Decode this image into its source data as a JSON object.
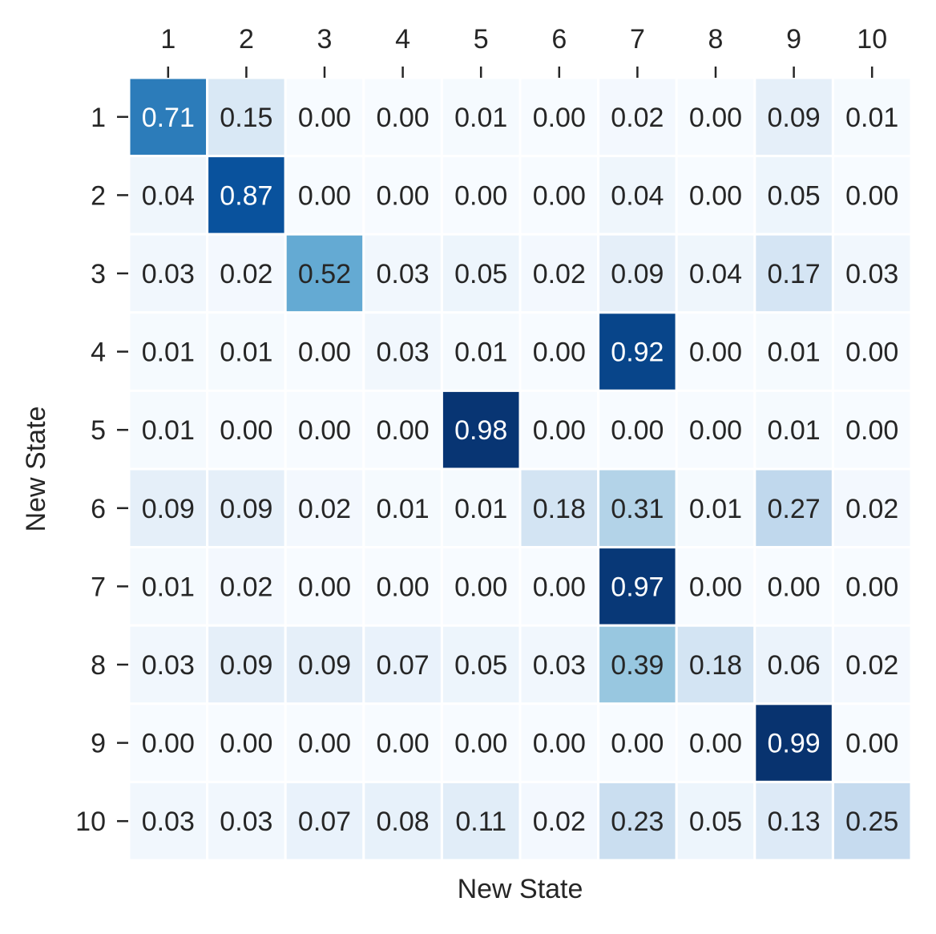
{
  "chart_data": {
    "type": "heatmap",
    "title": "",
    "xlabel": "New State",
    "ylabel": "New State",
    "x_tick_position": "top",
    "colormap": "Blues",
    "value_range": [
      0,
      1
    ],
    "grid": false,
    "colorbar": false,
    "x_categories": [
      "1",
      "2",
      "3",
      "4",
      "5",
      "6",
      "7",
      "8",
      "9",
      "10"
    ],
    "y_categories": [
      "1",
      "2",
      "3",
      "4",
      "5",
      "6",
      "7",
      "8",
      "9",
      "10"
    ],
    "values": [
      [
        "0.71",
        "0.15",
        "0.00",
        "0.00",
        "0.01",
        "0.00",
        "0.02",
        "0.00",
        "0.09",
        "0.01"
      ],
      [
        "0.04",
        "0.87",
        "0.00",
        "0.00",
        "0.00",
        "0.00",
        "0.04",
        "0.00",
        "0.05",
        "0.00"
      ],
      [
        "0.03",
        "0.02",
        "0.52",
        "0.03",
        "0.05",
        "0.02",
        "0.09",
        "0.04",
        "0.17",
        "0.03"
      ],
      [
        "0.01",
        "0.01",
        "0.00",
        "0.03",
        "0.01",
        "0.00",
        "0.92",
        "0.00",
        "0.01",
        "0.00"
      ],
      [
        "0.01",
        "0.00",
        "0.00",
        "0.00",
        "0.98",
        "0.00",
        "0.00",
        "0.00",
        "0.01",
        "0.00"
      ],
      [
        "0.09",
        "0.09",
        "0.02",
        "0.01",
        "0.01",
        "0.18",
        "0.31",
        "0.01",
        "0.27",
        "0.02"
      ],
      [
        "0.01",
        "0.02",
        "0.00",
        "0.00",
        "0.00",
        "0.00",
        "0.97",
        "0.00",
        "0.00",
        "0.00"
      ],
      [
        "0.03",
        "0.09",
        "0.09",
        "0.07",
        "0.05",
        "0.03",
        "0.39",
        "0.18",
        "0.06",
        "0.02"
      ],
      [
        "0.00",
        "0.00",
        "0.00",
        "0.00",
        "0.00",
        "0.00",
        "0.00",
        "0.00",
        "0.99",
        "0.00"
      ],
      [
        "0.03",
        "0.03",
        "0.07",
        "0.08",
        "0.11",
        "0.02",
        "0.23",
        "0.05",
        "0.13",
        "0.25"
      ]
    ]
  }
}
